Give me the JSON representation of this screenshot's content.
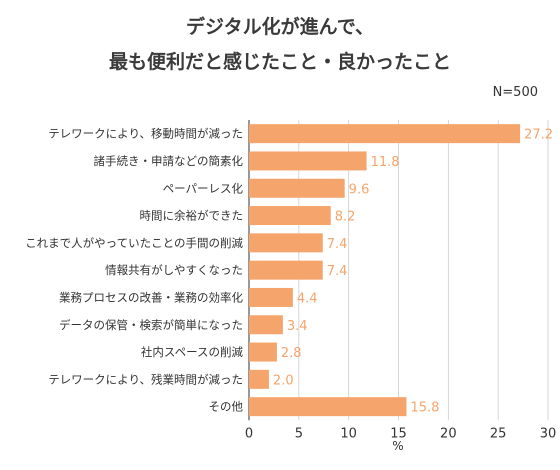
{
  "title_lines": [
    "デジタル化が進んで、",
    "最も便利だと感じたこと・良かったこと"
  ],
  "sample_note": "N=500",
  "chart_data": {
    "type": "bar",
    "orientation": "horizontal",
    "title": "デジタル化が進んで、最も便利だと感じたこと・良かったこと",
    "xlabel": "%",
    "ylabel": "",
    "xlim": [
      0,
      30
    ],
    "xticks": [
      0,
      5,
      10,
      15,
      20,
      25,
      30
    ],
    "grid": true,
    "categories": [
      "テレワークにより、移動時間が減った",
      "諸手続き・申請などの簡素化",
      "ペーパーレス化",
      "時間に余裕ができた",
      "これまで人がやっていたことの手間の削減",
      "情報共有がしやすくなった",
      "業務プロセスの改善・業務の効率化",
      "データの保管・検索が簡単になった",
      "社内スペースの削減",
      "テレワークにより、残業時間が減った",
      "その他"
    ],
    "values": [
      27.2,
      11.8,
      9.6,
      8.2,
      7.4,
      7.4,
      4.4,
      3.4,
      2.8,
      2.0,
      15.8
    ],
    "value_labels": [
      "27.2",
      "11.8",
      "9.6",
      "8.2",
      "7.4",
      "7.4",
      "4.4",
      "3.4",
      "2.8",
      "2.0",
      "15.8"
    ],
    "colors": {
      "bar": "#F5A46B",
      "label": "#F5A46B",
      "grid": "#cccccc",
      "axis": "#555555"
    }
  }
}
